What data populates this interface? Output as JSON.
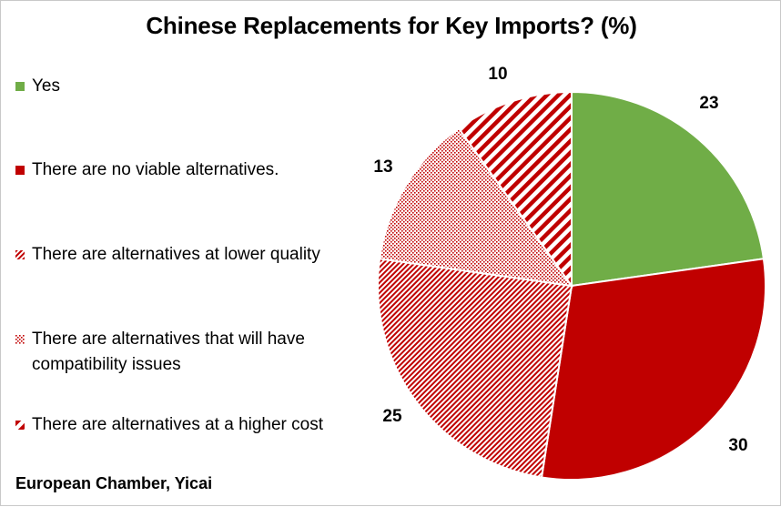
{
  "chart_data": {
    "type": "pie",
    "title": "Chinese Replacements for Key Imports? (%)",
    "legend_position": "left",
    "slices": [
      {
        "label": "Yes",
        "value": 23,
        "color": "#70ad47",
        "pattern": "solid"
      },
      {
        "label": "There are no viable alternatives.",
        "value": 30,
        "color": "#c00000",
        "pattern": "solid"
      },
      {
        "label": "There are alternatives at lower quality",
        "value": 25,
        "color": "#c00000",
        "pattern": "fine-diagonal"
      },
      {
        "label": "There are alternatives that will have compatibility issues",
        "value": 13,
        "color": "#c00000",
        "pattern": "dots"
      },
      {
        "label": "There are alternatives at a higher cost",
        "value": 10,
        "color": "#c00000",
        "pattern": "wide-diagonal"
      }
    ]
  },
  "source": "European Chamber, Yicai"
}
